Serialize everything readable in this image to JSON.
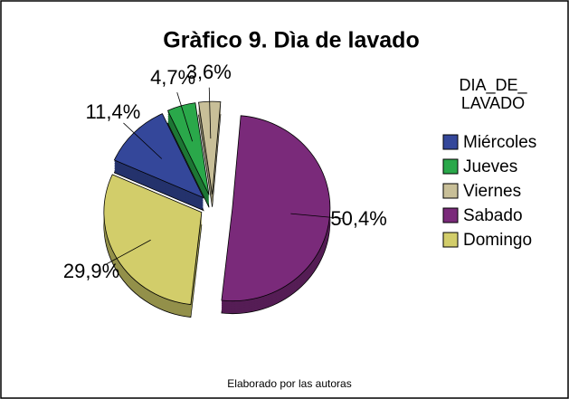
{
  "chart_data": {
    "type": "pie",
    "title": "Gràfico 9. Dìa de lavado",
    "categories": [
      "Miércoles",
      "Jueves",
      "Viernes",
      "Sabado",
      "Domingo"
    ],
    "values": [
      11.4,
      4.7,
      3.6,
      50.4,
      29.9
    ],
    "value_labels": [
      "11,4%",
      "4,7%",
      "3,6%",
      "50,4%",
      "29,9%"
    ],
    "colors": [
      "#34479a",
      "#2aa84a",
      "#c8bf98",
      "#7a2a7a",
      "#d2cd6a"
    ],
    "legend_title": "DIA_DE_ LAVADO",
    "legend": "right",
    "note": "Elaborado por las autoras"
  }
}
